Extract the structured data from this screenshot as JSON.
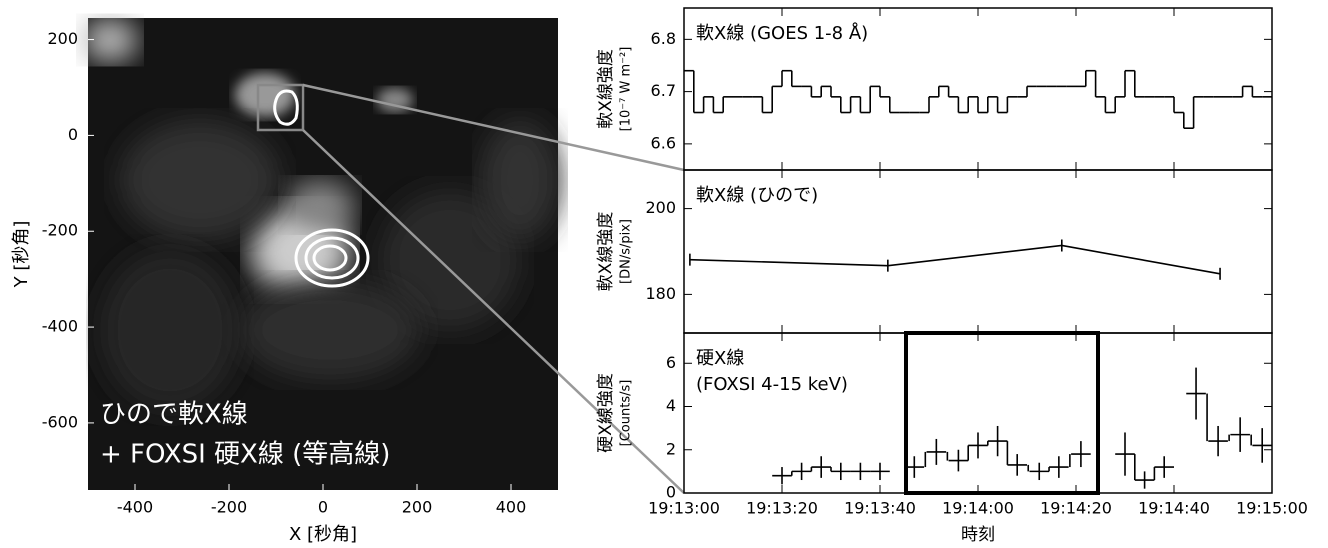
{
  "chart_data": [
    {
      "type": "image",
      "xlabel": "X [秒角]",
      "ylabel": "Y [秒角]",
      "xlim": [
        -500,
        500
      ],
      "ylim": [
        -740,
        245
      ],
      "xticks": [
        -400,
        -200,
        0,
        200,
        400
      ],
      "yticks": [
        200,
        0,
        -200,
        -400,
        -600
      ],
      "annotations": [
        "ひので軟X線",
        "+ FOXSI 硬X線 (等高線)"
      ]
    },
    {
      "type": "step",
      "title": [
        "軟X線 (GOES 1-8 Å)"
      ],
      "ylabel": [
        "軟X線強度",
        "[10⁻⁷ W m⁻²]"
      ],
      "color": "#000000",
      "xlim": [
        0,
        120
      ],
      "ylim": [
        6.55,
        6.86
      ],
      "yticks": [
        6.6,
        6.7,
        6.8
      ],
      "x": [
        0,
        2,
        4,
        6,
        8,
        10,
        12,
        14,
        16,
        18,
        20,
        22,
        24,
        26,
        28,
        30,
        32,
        34,
        36,
        38,
        40,
        42,
        44,
        46,
        48,
        50,
        52,
        54,
        56,
        58,
        60,
        62,
        64,
        66,
        68,
        70,
        72,
        74,
        76,
        78,
        80,
        82,
        84,
        86,
        88,
        90,
        92,
        94,
        96,
        98,
        100,
        102,
        104,
        106,
        108,
        110,
        112,
        114,
        116,
        118
      ],
      "values": [
        6.74,
        6.66,
        6.69,
        6.66,
        6.69,
        6.69,
        6.69,
        6.69,
        6.66,
        6.71,
        6.74,
        6.71,
        6.71,
        6.69,
        6.71,
        6.69,
        6.66,
        6.69,
        6.66,
        6.71,
        6.69,
        6.66,
        6.66,
        6.66,
        6.66,
        6.69,
        6.71,
        6.69,
        6.66,
        6.69,
        6.66,
        6.69,
        6.66,
        6.69,
        6.69,
        6.71,
        6.71,
        6.71,
        6.71,
        6.71,
        6.71,
        6.74,
        6.69,
        6.66,
        6.69,
        6.74,
        6.69,
        6.69,
        6.69,
        6.69,
        6.66,
        6.63,
        6.69,
        6.69,
        6.69,
        6.69,
        6.69,
        6.71,
        6.69,
        6.69
      ]
    },
    {
      "type": "line",
      "title": [
        "軟X線 (ひので)"
      ],
      "ylabel": [
        "軟X線強度",
        "[DN/s/pix]"
      ],
      "color": "#000000",
      "xlim": [
        0,
        120
      ],
      "ylim": [
        171,
        209
      ],
      "yticks": [
        180,
        200
      ],
      "x": [
        1.2,
        41.6,
        77.1,
        109.4
      ],
      "values": [
        188.1,
        186.7,
        191.4,
        184.8
      ]
    },
    {
      "type": "errorbar",
      "title": [
        "硬X線",
        "(FOXSI 4-15 keV)"
      ],
      "ylabel": [
        "硬X線強度",
        "[Counts/s]"
      ],
      "xlabel": "時刻",
      "color": "#000000",
      "xlim": [
        0,
        120
      ],
      "ylim": [
        0,
        7.4
      ],
      "yticks": [
        0,
        2,
        4,
        6
      ],
      "xticks": [
        {
          "value": 0,
          "label": "19:13:00"
        },
        {
          "value": 20,
          "label": "19:13:20"
        },
        {
          "value": 40,
          "label": "19:13:40"
        },
        {
          "value": 60,
          "label": "19:14:00"
        },
        {
          "value": 80,
          "label": "19:14:20"
        },
        {
          "value": 100,
          "label": "19:14:40"
        },
        {
          "value": 120,
          "label": "19:15:00"
        }
      ],
      "x": [
        20,
        24,
        28,
        32,
        36,
        40,
        47,
        51.5,
        56,
        60,
        64,
        68,
        72.5,
        76.5,
        81,
        90,
        94,
        98,
        104.5,
        109,
        113.5,
        118
      ],
      "values": [
        0.8,
        1.0,
        1.2,
        1.0,
        1.0,
        1.0,
        1.2,
        1.9,
        1.5,
        2.2,
        2.4,
        1.3,
        1.0,
        1.2,
        1.8,
        1.8,
        0.6,
        1.2,
        4.6,
        2.4,
        2.7,
        2.2
      ],
      "errors": [
        0.4,
        0.4,
        0.5,
        0.4,
        0.4,
        0.4,
        0.5,
        0.6,
        0.5,
        0.6,
        0.7,
        0.5,
        0.4,
        0.5,
        0.6,
        1.0,
        0.4,
        0.5,
        1.2,
        0.7,
        0.8,
        0.8
      ]
    }
  ]
}
